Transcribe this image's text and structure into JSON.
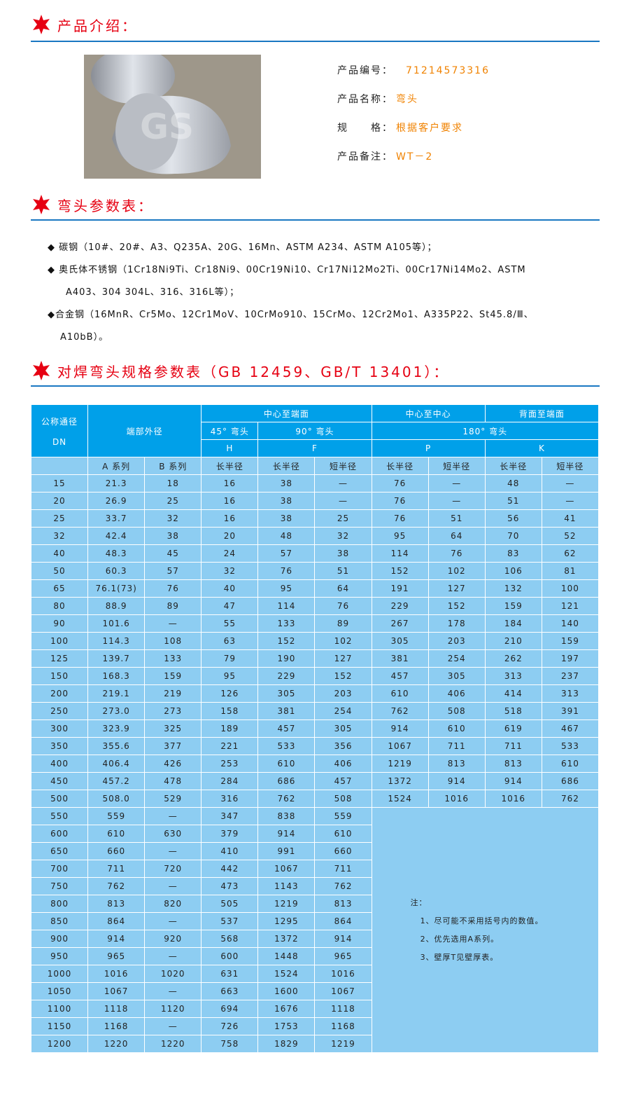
{
  "sections": {
    "intro": "产品介绍：",
    "params": "弯头参数表：",
    "spec": "对焊弯头规格参数表（GB 12459、GB/T 13401）："
  },
  "product": {
    "watermark": "GS",
    "rows": [
      {
        "label": "产品编号：",
        "value": "71214573316"
      },
      {
        "label": "产品名称：",
        "value": "弯头"
      },
      {
        "label": "规　　格：",
        "value": "根据客户要求"
      },
      {
        "label": "产品备注：",
        "value": "WT－2"
      }
    ]
  },
  "materials": [
    "◆ 碳钢（10#、20#、A3、Q235A、20G、16Mn、ASTM A234、ASTM A105等）；",
    "◆ 奥氏体不锈钢（1Cr18Ni9Ti、Cr18Ni9、00Cr19Ni10、Cr17Ni12Mo2Ti、00Cr17Ni14Mo2、ASTM",
    "A403、304 304L、316、316L等）；",
    "◆合金钢（16MnR、Cr5Mo、12Cr1MoV、10CrMo910、15CrMo、12Cr2Mo1、A335P22、St45.8/Ⅲ、",
    "A10bB）。"
  ],
  "colors": {
    "accent": "#e60012",
    "rule": "#1a78c2",
    "header_bg": "#00a0e9",
    "body_bg": "#8dcdf2",
    "value": "#f08200"
  },
  "table": {
    "h_dn": "公称通径",
    "h_dn2": "DN",
    "h_od": "端部外径",
    "h_c2e": "中心至端面",
    "h_c2c": "中心至中心",
    "h_b2e": "背面至端面",
    "h_45": "45° 弯头",
    "h_90": "90° 弯头",
    "h_180": "180° 弯头",
    "h_H": "H",
    "h_F": "F",
    "h_P": "P",
    "h_K": "K",
    "sub": [
      "A 系列",
      "B 系列",
      "长半径",
      "长半径",
      "短半径",
      "长半径",
      "短半径",
      "长半径",
      "短半径"
    ],
    "rows": [
      [
        "15",
        "21.3",
        "18",
        "16",
        "38",
        "—",
        "76",
        "—",
        "48",
        "—"
      ],
      [
        "20",
        "26.9",
        "25",
        "16",
        "38",
        "—",
        "76",
        "—",
        "51",
        "—"
      ],
      [
        "25",
        "33.7",
        "32",
        "16",
        "38",
        "25",
        "76",
        "51",
        "56",
        "41"
      ],
      [
        "32",
        "42.4",
        "38",
        "20",
        "48",
        "32",
        "95",
        "64",
        "70",
        "52"
      ],
      [
        "40",
        "48.3",
        "45",
        "24",
        "57",
        "38",
        "114",
        "76",
        "83",
        "62"
      ],
      [
        "50",
        "60.3",
        "57",
        "32",
        "76",
        "51",
        "152",
        "102",
        "106",
        "81"
      ],
      [
        "65",
        "76.1(73)",
        "76",
        "40",
        "95",
        "64",
        "191",
        "127",
        "132",
        "100"
      ],
      [
        "80",
        "88.9",
        "89",
        "47",
        "114",
        "76",
        "229",
        "152",
        "159",
        "121"
      ],
      [
        "90",
        "101.6",
        "—",
        "55",
        "133",
        "89",
        "267",
        "178",
        "184",
        "140"
      ],
      [
        "100",
        "114.3",
        "108",
        "63",
        "152",
        "102",
        "305",
        "203",
        "210",
        "159"
      ],
      [
        "125",
        "139.7",
        "133",
        "79",
        "190",
        "127",
        "381",
        "254",
        "262",
        "197"
      ],
      [
        "150",
        "168.3",
        "159",
        "95",
        "229",
        "152",
        "457",
        "305",
        "313",
        "237"
      ],
      [
        "200",
        "219.1",
        "219",
        "126",
        "305",
        "203",
        "610",
        "406",
        "414",
        "313"
      ],
      [
        "250",
        "273.0",
        "273",
        "158",
        "381",
        "254",
        "762",
        "508",
        "518",
        "391"
      ],
      [
        "300",
        "323.9",
        "325",
        "189",
        "457",
        "305",
        "914",
        "610",
        "619",
        "467"
      ],
      [
        "350",
        "355.6",
        "377",
        "221",
        "533",
        "356",
        "1067",
        "711",
        "711",
        "533"
      ],
      [
        "400",
        "406.4",
        "426",
        "253",
        "610",
        "406",
        "1219",
        "813",
        "813",
        "610"
      ],
      [
        "450",
        "457.2",
        "478",
        "284",
        "686",
        "457",
        "1372",
        "914",
        "914",
        "686"
      ],
      [
        "500",
        "508.0",
        "529",
        "316",
        "762",
        "508",
        "1524",
        "1016",
        "1016",
        "762"
      ],
      [
        "550",
        "559",
        "—",
        "347",
        "838",
        "559"
      ],
      [
        "600",
        "610",
        "630",
        "379",
        "914",
        "610"
      ],
      [
        "650",
        "660",
        "—",
        "410",
        "991",
        "660"
      ],
      [
        "700",
        "711",
        "720",
        "442",
        "1067",
        "711"
      ],
      [
        "750",
        "762",
        "—",
        "473",
        "1143",
        "762"
      ],
      [
        "800",
        "813",
        "820",
        "505",
        "1219",
        "813"
      ],
      [
        "850",
        "864",
        "—",
        "537",
        "1295",
        "864"
      ],
      [
        "900",
        "914",
        "920",
        "568",
        "1372",
        "914"
      ],
      [
        "950",
        "965",
        "—",
        "600",
        "1448",
        "965"
      ],
      [
        "1000",
        "1016",
        "1020",
        "631",
        "1524",
        "1016"
      ],
      [
        "1050",
        "1067",
        "—",
        "663",
        "1600",
        "1067"
      ],
      [
        "1100",
        "1118",
        "1120",
        "694",
        "1676",
        "1118"
      ],
      [
        "1150",
        "1168",
        "—",
        "726",
        "1753",
        "1168"
      ],
      [
        "1200",
        "1220",
        "1220",
        "758",
        "1829",
        "1219"
      ]
    ],
    "notes": [
      "注：",
      "1、尽可能不采用括号内的数值。",
      "2、优先选用A系列。",
      "3、壁厚T见壁厚表。"
    ]
  }
}
